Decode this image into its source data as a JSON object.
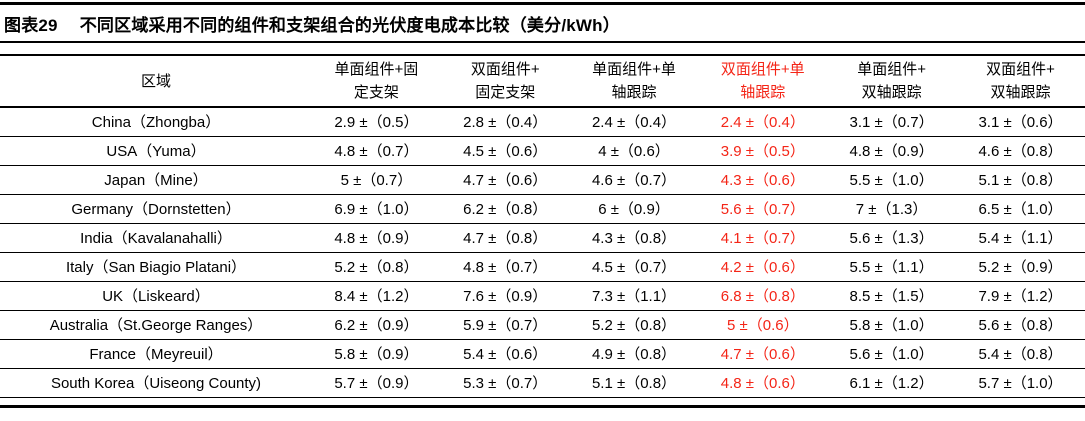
{
  "title": {
    "figure_label": "图表29",
    "text": "不同区域采用不同的组件和支架组合的光伏度电成本比较（美分/kWh）"
  },
  "colors": {
    "accent_red": "#f42517",
    "text": "#000000",
    "rule": "#000000"
  },
  "table": {
    "region_header": "区域",
    "red_value_column": 3,
    "columns": [
      {
        "label": "单面组件+固定支架",
        "line1": "单面组件+固",
        "line2": "定支架",
        "red": false
      },
      {
        "label": "双面组件+固定支架",
        "line1": "双面组件+",
        "line2": "固定支架",
        "red": false
      },
      {
        "label": "单面组件+单轴跟踪",
        "line1": "单面组件+单",
        "line2": "轴跟踪",
        "red": false
      },
      {
        "label": "双面组件+单轴跟踪",
        "line1": "双面组件+单",
        "line2": "轴跟踪",
        "red": true
      },
      {
        "label": "单面组件+双轴跟踪",
        "line1": "单面组件+",
        "line2": "双轴跟踪",
        "red": false
      },
      {
        "label": "双面组件+双轴跟踪",
        "line1": "双面组件+",
        "line2": "双轴跟踪",
        "red": false
      }
    ],
    "rows": [
      {
        "region": "China（Zhongba）",
        "values": [
          "2.9 ±（0.5）",
          "2.8 ±（0.4）",
          "2.4 ±（0.4）",
          "2.4 ±（0.4）",
          "3.1 ±（0.7）",
          "3.1 ±（0.6）"
        ]
      },
      {
        "region": "USA（Yuma）",
        "values": [
          "4.8 ±（0.7）",
          "4.5 ±（0.6）",
          "4 ±（0.6）",
          "3.9 ±（0.5）",
          "4.8 ±（0.9）",
          "4.6 ±（0.8）"
        ]
      },
      {
        "region": "Japan（Mine）",
        "values": [
          "5 ±（0.7）",
          "4.7 ±（0.6）",
          "4.6 ±（0.7）",
          "4.3 ±（0.6）",
          "5.5 ±（1.0）",
          "5.1 ±（0.8）"
        ]
      },
      {
        "region": "Germany（Dornstetten）",
        "values": [
          "6.9 ±（1.0）",
          "6.2 ±（0.8）",
          "6 ±（0.9）",
          "5.6 ±（0.7）",
          "7 ±（1.3）",
          "6.5 ±（1.0）"
        ]
      },
      {
        "region": "India（Kavalanahalli）",
        "values": [
          "4.8 ±（0.9）",
          "4.7 ±（0.8）",
          "4.3 ±（0.8）",
          "4.1 ±（0.7）",
          "5.6 ±（1.3）",
          "5.4 ±（1.1）"
        ]
      },
      {
        "region": "Italy（San Biagio Platani）",
        "values": [
          "5.2 ±（0.8）",
          "4.8 ±（0.7）",
          "4.5 ±（0.7）",
          "4.2 ±（0.6）",
          "5.5 ±（1.1）",
          "5.2 ±（0.9）"
        ]
      },
      {
        "region": "UK（Liskeard）",
        "values": [
          "8.4 ±（1.2）",
          "7.6 ±（0.9）",
          "7.3 ±（1.1）",
          "6.8 ±（0.8）",
          "8.5 ±（1.5）",
          "7.9 ±（1.2）"
        ]
      },
      {
        "region": "Australia（St.George Ranges）",
        "values": [
          "6.2 ±（0.9）",
          "5.9 ±（0.7）",
          "5.2 ±（0.8）",
          "5 ±（0.6）",
          "5.8 ±（1.0）",
          "5.6 ±（0.8）"
        ]
      },
      {
        "region": "France（Meyreuil）",
        "values": [
          "5.8 ±（0.9）",
          "5.4 ±（0.6）",
          "4.9 ±（0.8）",
          "4.7 ±（0.6）",
          "5.6 ±（1.0）",
          "5.4 ±（0.8）"
        ]
      },
      {
        "region": "South Korea（Uiseong County)",
        "values": [
          "5.7 ±（0.9）",
          "5.3 ±（0.7）",
          "5.1 ±（0.8）",
          "4.8 ±（0.6）",
          "6.1 ±（1.2）",
          "5.7 ±（1.0）"
        ]
      }
    ]
  }
}
